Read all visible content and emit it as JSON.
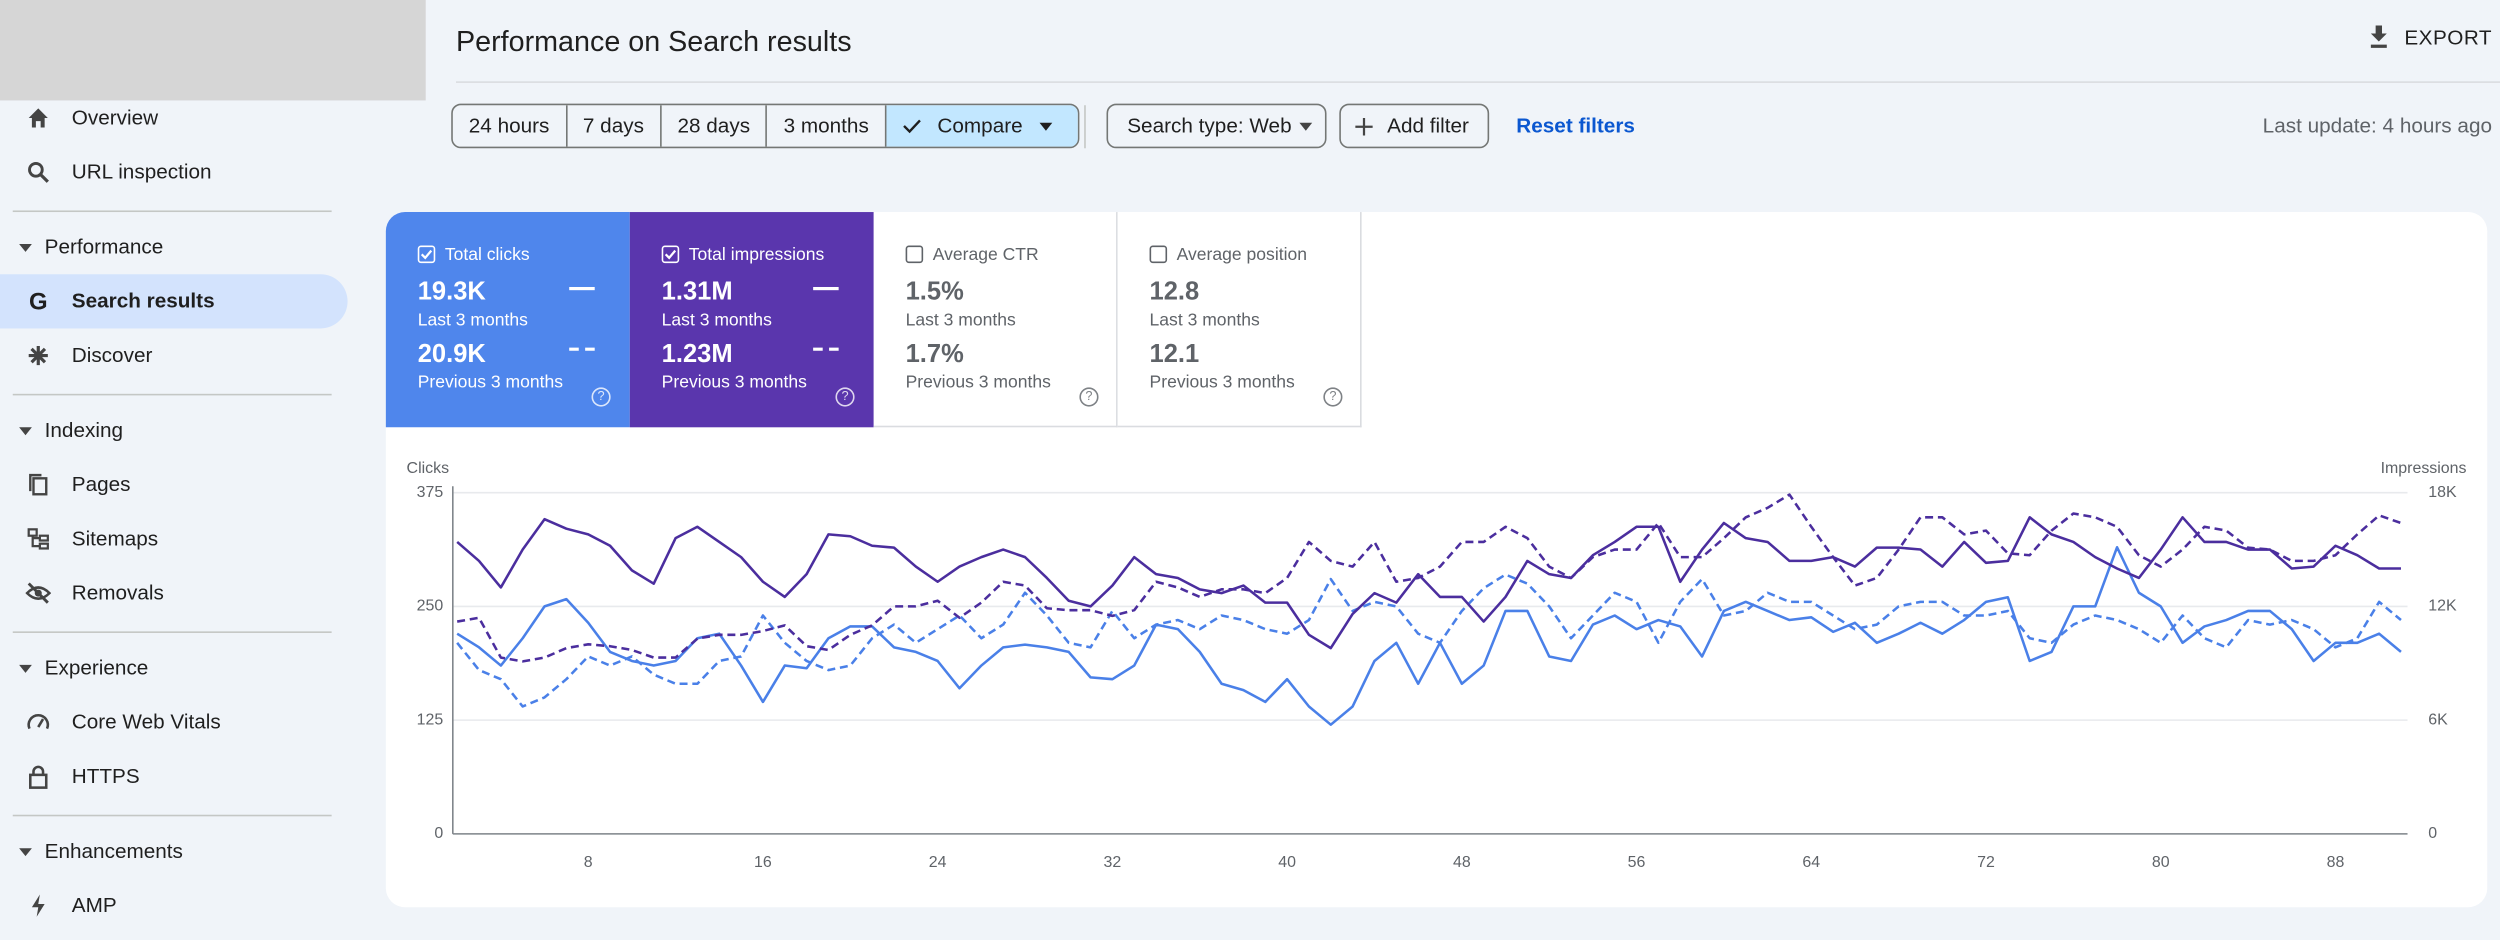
{
  "nav": {
    "top": [
      "Overview",
      "URL inspection"
    ],
    "sections": [
      {
        "title": "Performance",
        "items": [
          "Search results",
          "Discover"
        ]
      },
      {
        "title": "Indexing",
        "items": [
          "Pages",
          "Sitemaps",
          "Removals"
        ]
      },
      {
        "title": "Experience",
        "items": [
          "Core Web Vitals",
          "HTTPS"
        ]
      },
      {
        "title": "Enhancements",
        "items": [
          "AMP"
        ]
      }
    ]
  },
  "header": {
    "title": "Performance on Search results",
    "export": "EXPORT"
  },
  "filters": {
    "ranges": [
      "24 hours",
      "7 days",
      "28 days",
      "3 months"
    ],
    "compare": "Compare",
    "search_type": "Search type: Web",
    "add_filter": "Add filter",
    "reset": "Reset filters",
    "last_update": "Last update: 4 hours ago"
  },
  "metrics": [
    {
      "label": "Total clicks",
      "checked": true,
      "current": "19.3K",
      "current_period": "Last 3 months",
      "previous": "20.9K",
      "previous_period": "Previous 3 months"
    },
    {
      "label": "Total impressions",
      "checked": true,
      "current": "1.31M",
      "current_period": "Last 3 months",
      "previous": "1.23M",
      "previous_period": "Previous 3 months"
    },
    {
      "label": "Average CTR",
      "checked": false,
      "current": "1.5%",
      "current_period": "Last 3 months",
      "previous": "1.7%",
      "previous_period": "Previous 3 months"
    },
    {
      "label": "Average position",
      "checked": false,
      "current": "12.8",
      "current_period": "Last 3 months",
      "previous": "12.1",
      "previous_period": "Previous 3 months"
    }
  ],
  "chart_data": {
    "type": "line",
    "y_label": "Clicks",
    "y2_label": "Impressions",
    "grid": true,
    "xlim": [
      1.8,
      91.3
    ],
    "xticks": [
      8,
      16,
      24,
      32,
      40,
      48,
      56,
      64,
      72,
      80,
      88
    ],
    "ylim": [
      0,
      375
    ],
    "yticks": [
      0,
      125,
      250,
      375
    ],
    "y2lim": [
      0,
      18000
    ],
    "y2ticks": [
      0,
      {
        "value": 6000,
        "label": "6K"
      },
      {
        "value": 12000,
        "label": "12K"
      },
      {
        "value": 18000,
        "label": "18K"
      }
    ],
    "x": [
      2,
      3,
      4,
      5,
      6,
      7,
      8,
      9,
      10,
      11,
      12,
      13,
      14,
      15,
      16,
      17,
      18,
      19,
      20,
      21,
      22,
      23,
      24,
      25,
      26,
      27,
      28,
      29,
      30,
      31,
      32,
      33,
      34,
      35,
      36,
      37,
      38,
      39,
      40,
      41,
      42,
      43,
      44,
      45,
      46,
      47,
      48,
      49,
      50,
      51,
      52,
      53,
      54,
      55,
      56,
      57,
      58,
      59,
      60,
      61,
      62,
      63,
      64,
      65,
      66,
      67,
      68,
      69,
      70,
      71,
      72,
      73,
      74,
      75,
      76,
      77,
      78,
      79,
      80,
      81,
      82,
      83,
      84,
      85,
      86,
      87,
      88,
      89,
      90,
      91
    ],
    "series": [
      {
        "color": "#4a80e8",
        "dashed": false,
        "axis": "y",
        "values": [
          220,
          205,
          185,
          215,
          250,
          258,
          232,
          200,
          190,
          185,
          190,
          215,
          220,
          185,
          145,
          185,
          182,
          215,
          228,
          228,
          205,
          200,
          190,
          160,
          185,
          205,
          208,
          205,
          200,
          172,
          170,
          185,
          230,
          225,
          200,
          165,
          158,
          145,
          170,
          140,
          120,
          140,
          190,
          210,
          165,
          210,
          165,
          185,
          245,
          245,
          195,
          190,
          230,
          240,
          225,
          235,
          228,
          195,
          245,
          255,
          245,
          235,
          238,
          222,
          232,
          210,
          220,
          232,
          220,
          235,
          255,
          260,
          190,
          200,
          250,
          250,
          315,
          265,
          250,
          210,
          228,
          235,
          245,
          245,
          225,
          190,
          210,
          210,
          220,
          200
        ]
      },
      {
        "color": "#4a80e8",
        "dashed": true,
        "axis": "y",
        "values": [
          210,
          180,
          170,
          140,
          150,
          170,
          195,
          185,
          195,
          175,
          165,
          165,
          190,
          195,
          240,
          210,
          190,
          180,
          185,
          215,
          230,
          210,
          225,
          240,
          215,
          230,
          265,
          240,
          210,
          205,
          245,
          215,
          230,
          235,
          225,
          240,
          235,
          225,
          220,
          235,
          280,
          245,
          255,
          250,
          220,
          210,
          245,
          270,
          285,
          275,
          250,
          215,
          240,
          265,
          255,
          210,
          255,
          280,
          240,
          245,
          265,
          255,
          255,
          240,
          225,
          230,
          250,
          255,
          255,
          240,
          240,
          245,
          215,
          210,
          230,
          240,
          235,
          225,
          210,
          240,
          215,
          205,
          235,
          230,
          235,
          225,
          205,
          215,
          255,
          235
        ]
      },
      {
        "color": "#4b2e9e",
        "dashed": false,
        "axis": "y2",
        "values": [
          15400,
          14400,
          13000,
          15000,
          16600,
          16100,
          15800,
          15200,
          13900,
          13200,
          15600,
          16200,
          15400,
          14600,
          13300,
          12500,
          13700,
          15800,
          15700,
          15200,
          15100,
          14100,
          13300,
          14100,
          14600,
          15000,
          14600,
          13500,
          12300,
          12000,
          13100,
          14600,
          13700,
          13500,
          12900,
          12700,
          13100,
          12200,
          12200,
          10500,
          9800,
          11600,
          12700,
          12200,
          13700,
          12500,
          12500,
          11200,
          12500,
          14400,
          13700,
          13500,
          14700,
          15400,
          16200,
          16200,
          13300,
          15000,
          16400,
          15600,
          15400,
          14400,
          14400,
          14600,
          14100,
          15100,
          15100,
          15000,
          14100,
          15400,
          14300,
          14400,
          16700,
          15800,
          15400,
          14600,
          14000,
          13500,
          15000,
          16700,
          15400,
          15400,
          15000,
          15000,
          14000,
          14100,
          15200,
          14700,
          14000,
          14000
        ]
      },
      {
        "color": "#4b2e9e",
        "dashed": true,
        "axis": "y2",
        "values": [
          11200,
          11400,
          9300,
          9100,
          9300,
          9800,
          10000,
          9900,
          9700,
          9300,
          9300,
          10300,
          10500,
          10500,
          10700,
          11000,
          9900,
          9700,
          10500,
          11000,
          12000,
          12000,
          12300,
          11400,
          12200,
          13300,
          13100,
          11900,
          11800,
          11800,
          11500,
          11800,
          13300,
          13000,
          12500,
          12900,
          12900,
          12700,
          13500,
          15400,
          14400,
          14100,
          15400,
          13300,
          13500,
          14100,
          15400,
          15400,
          16200,
          15600,
          14100,
          13500,
          14600,
          15000,
          15000,
          16400,
          14600,
          14600,
          15600,
          16700,
          17200,
          17900,
          16200,
          14600,
          13100,
          13500,
          15000,
          16700,
          16700,
          15800,
          16000,
          14800,
          14700,
          16000,
          16900,
          16700,
          16200,
          14700,
          14100,
          15000,
          16200,
          16000,
          15100,
          15000,
          14400,
          14400,
          14700,
          15800,
          16800,
          16400
        ]
      }
    ]
  }
}
